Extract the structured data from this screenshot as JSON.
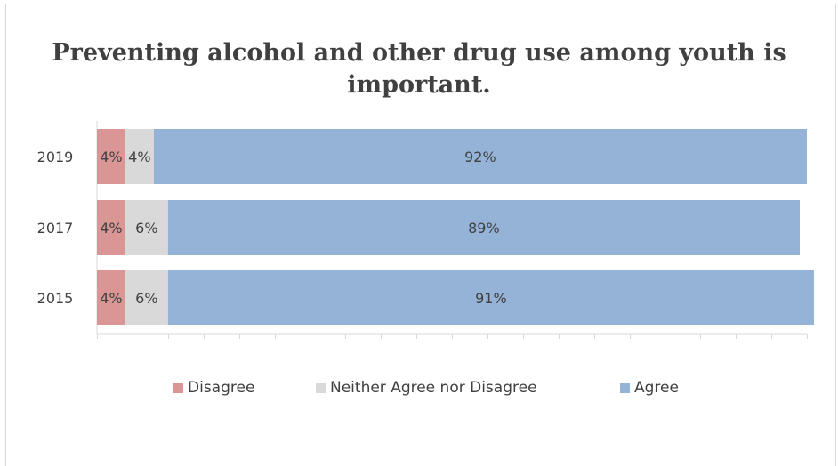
{
  "chart_data": {
    "type": "bar",
    "orientation": "horizontal",
    "stacked": true,
    "title": "Preventing alcohol and other drug use among youth is important.",
    "title_lines": [
      "Preventing alcohol and other drug use among youth is",
      "important."
    ],
    "categories": [
      "2019",
      "2017",
      "2015"
    ],
    "series": [
      {
        "name": "Disagree",
        "color": "#d99694",
        "values": [
          4,
          4,
          4
        ],
        "labels": [
          "4%",
          "4%",
          "4%"
        ]
      },
      {
        "name": "Neither Agree nor Disagree",
        "color": "#d9d9d9",
        "values": [
          4,
          6,
          6
        ],
        "labels": [
          "4%",
          "6%",
          "6%"
        ]
      },
      {
        "name": "Agree",
        "color": "#95b3d7",
        "values": [
          92,
          89,
          91
        ],
        "labels": [
          "92%",
          "89%",
          "91%"
        ]
      }
    ],
    "xlim": [
      0,
      100
    ],
    "legend_position": "bottom",
    "grid": false
  }
}
